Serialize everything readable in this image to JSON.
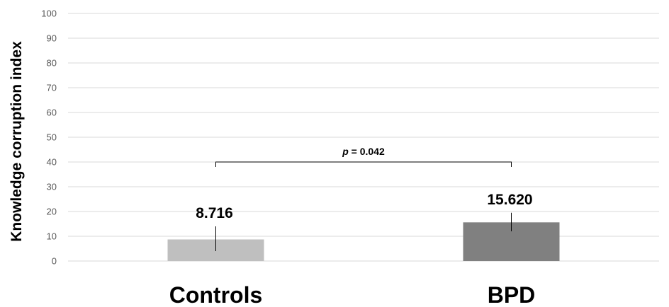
{
  "chart_data": {
    "type": "bar",
    "ylabel": "Knowledge corruption index",
    "xlabel": "",
    "ylim": [
      0,
      100
    ],
    "yticks": [
      0,
      10,
      20,
      30,
      40,
      50,
      60,
      70,
      80,
      90,
      100
    ],
    "grid": true,
    "categories": [
      "Controls",
      "BPD"
    ],
    "values": [
      8.716,
      15.62
    ],
    "value_labels": [
      "8.716",
      "15.620"
    ],
    "error_bars": [
      [
        4,
        14
      ],
      [
        12,
        19.5
      ]
    ],
    "colors": [
      "#bfbfbf",
      "#808080"
    ],
    "significance": {
      "between": [
        "Controls",
        "BPD"
      ],
      "y": 40,
      "label_p": "p",
      "label_rest": " = 0.042"
    }
  }
}
